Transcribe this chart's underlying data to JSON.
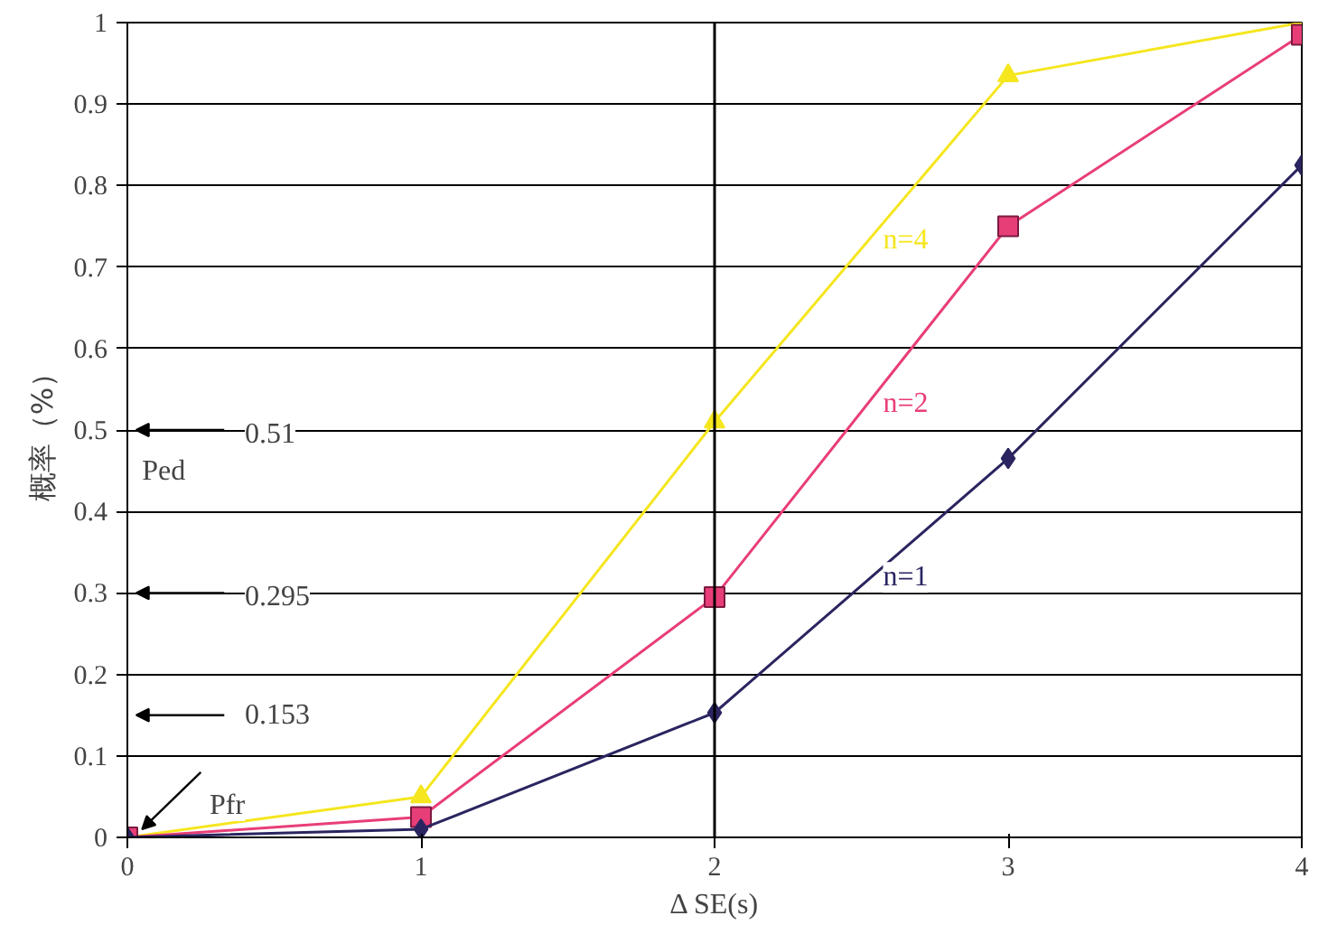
{
  "chart_data": {
    "type": "line",
    "xlabel": "Δ SE(s)",
    "ylabel": "概率（%）",
    "x": [
      0,
      1,
      2,
      3,
      4
    ],
    "series": [
      {
        "name": "n=4",
        "color": "#f5e61e",
        "marker": "triangle",
        "values": [
          0,
          0.05,
          0.51,
          0.935,
          1.0
        ]
      },
      {
        "name": "n=2",
        "color": "#e83e78",
        "marker": "square",
        "values": [
          0,
          0.025,
          0.295,
          0.75,
          0.985
        ]
      },
      {
        "name": "n=1",
        "color": "#2a2560",
        "marker": "diamond",
        "values": [
          0,
          0.01,
          0.153,
          0.465,
          0.825
        ]
      }
    ],
    "xlim": [
      0,
      4
    ],
    "xticks": [
      0,
      1,
      2,
      3,
      4
    ],
    "ylim": [
      0,
      1
    ],
    "yticks": [
      0,
      0.1,
      0.2,
      0.3,
      0.4,
      0.5,
      0.6,
      0.7,
      0.8,
      0.9,
      1
    ],
    "grid": "y",
    "ref_lines": [
      {
        "axis": "x",
        "value": 2,
        "color": "#000000"
      }
    ],
    "annotations": [
      "0.51",
      "0.295",
      "0.153",
      {
        "text": "Pfr",
        "x": 0,
        "y": 0
      },
      "Ped"
    ]
  }
}
